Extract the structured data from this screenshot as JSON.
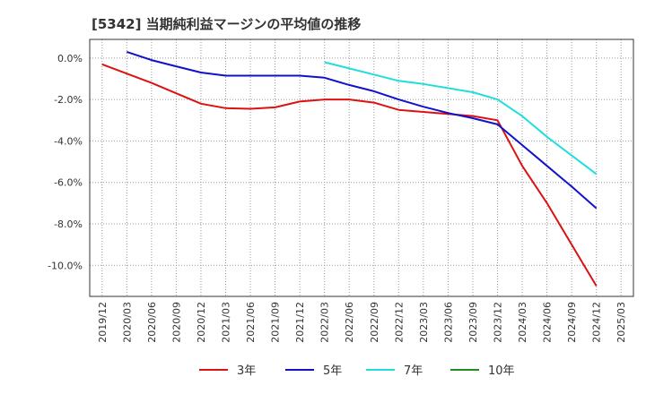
{
  "chart_data": {
    "type": "line",
    "title": "[5342]  当期純利益マージンの平均値の推移",
    "xlabel": "",
    "ylabel": "",
    "x_ticks": [
      "2019/12",
      "2020/03",
      "2020/06",
      "2020/09",
      "2020/12",
      "2021/03",
      "2021/06",
      "2021/09",
      "2021/12",
      "2022/03",
      "2022/06",
      "2022/09",
      "2022/12",
      "2023/03",
      "2023/06",
      "2023/09",
      "2023/12",
      "2024/03",
      "2024/06",
      "2024/09",
      "2024/12",
      "2025/03"
    ],
    "y_ticks": [
      0,
      -2,
      -4,
      -6,
      -8,
      -10
    ],
    "y_tick_labels": [
      "0.0%",
      "-2.0%",
      "-4.0%",
      "-6.0%",
      "-8.0%",
      "-10.0%"
    ],
    "ylim": [
      -11.5,
      0.9
    ],
    "grid": true,
    "legend_position": "bottom",
    "series": [
      {
        "name": "3年",
        "color": "#dd1111",
        "x": [
          "2019/12",
          "2020/03",
          "2020/06",
          "2020/09",
          "2020/12",
          "2021/03",
          "2021/06",
          "2021/09",
          "2021/12",
          "2022/03",
          "2022/06",
          "2022/09",
          "2022/12",
          "2023/03",
          "2023/06",
          "2023/09",
          "2023/12",
          "2024/03",
          "2024/06",
          "2024/09",
          "2024/12"
        ],
        "values": [
          -0.3,
          -0.75,
          -1.2,
          -1.7,
          -2.2,
          -2.42,
          -2.45,
          -2.38,
          -2.1,
          -2.0,
          -2.0,
          -2.15,
          -2.5,
          -2.6,
          -2.7,
          -2.8,
          -3.0,
          -5.2,
          -7.0,
          -9.0,
          -11.0
        ]
      },
      {
        "name": "5年",
        "color": "#1111cc",
        "x": [
          "2020/03",
          "2020/06",
          "2020/09",
          "2020/12",
          "2021/03",
          "2021/06",
          "2021/09",
          "2021/12",
          "2022/03",
          "2022/06",
          "2022/09",
          "2022/12",
          "2023/03",
          "2023/06",
          "2023/09",
          "2023/12",
          "2024/03",
          "2024/06",
          "2024/09",
          "2024/12"
        ],
        "values": [
          0.3,
          -0.1,
          -0.4,
          -0.7,
          -0.85,
          -0.85,
          -0.85,
          -0.85,
          -0.95,
          -1.3,
          -1.6,
          -2.0,
          -2.35,
          -2.65,
          -2.9,
          -3.2,
          -4.2,
          -5.2,
          -6.2,
          -7.25
        ]
      },
      {
        "name": "7年",
        "color": "#22dddd",
        "x": [
          "2022/03",
          "2022/06",
          "2022/09",
          "2022/12",
          "2023/03",
          "2023/06",
          "2023/09",
          "2023/12",
          "2024/03",
          "2024/06",
          "2024/09",
          "2024/12"
        ],
        "values": [
          -0.2,
          -0.5,
          -0.8,
          -1.1,
          -1.25,
          -1.45,
          -1.65,
          -2.0,
          -2.8,
          -3.8,
          -4.7,
          -5.6
        ]
      },
      {
        "name": "10年",
        "color": "#228b22",
        "x": [],
        "values": []
      }
    ]
  }
}
